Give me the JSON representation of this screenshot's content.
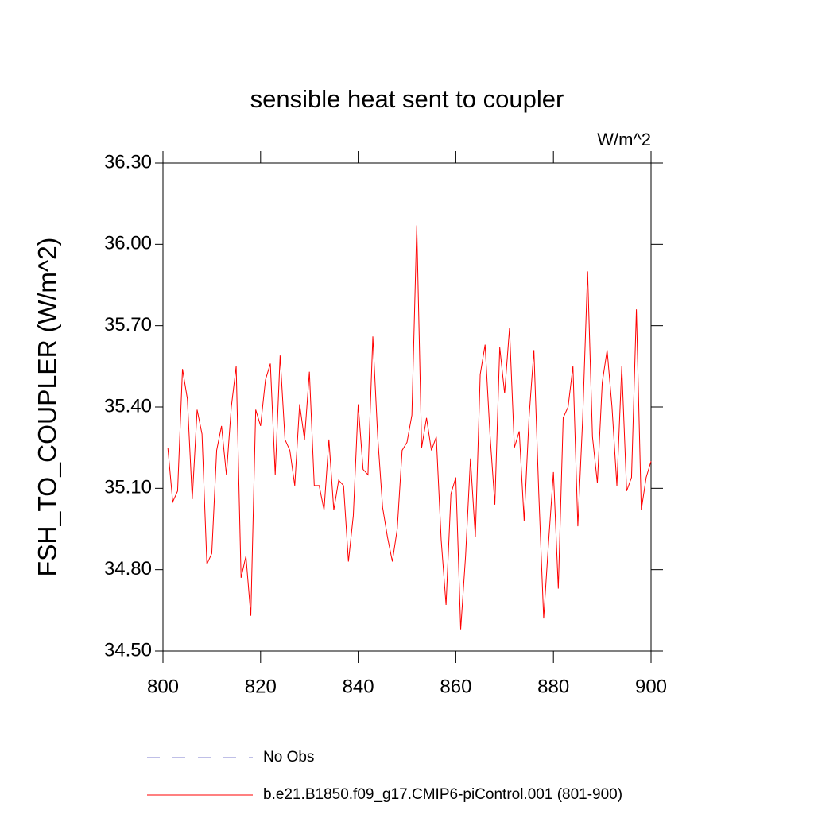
{
  "chart_data": {
    "type": "line",
    "title": "sensible heat sent to coupler",
    "units": "W/m^2",
    "ylabel": "FSH_TO_COUPLER  (W/m^2)",
    "x": [
      801,
      802,
      803,
      804,
      805,
      806,
      807,
      808,
      809,
      810,
      811,
      812,
      813,
      814,
      815,
      816,
      817,
      818,
      819,
      820,
      821,
      822,
      823,
      824,
      825,
      826,
      827,
      828,
      829,
      830,
      831,
      832,
      833,
      834,
      835,
      836,
      837,
      838,
      839,
      840,
      841,
      842,
      843,
      844,
      845,
      846,
      847,
      848,
      849,
      850,
      851,
      852,
      853,
      854,
      855,
      856,
      857,
      858,
      859,
      860,
      861,
      862,
      863,
      864,
      865,
      866,
      867,
      868,
      869,
      870,
      871,
      872,
      873,
      874,
      875,
      876,
      877,
      878,
      879,
      880,
      881,
      882,
      883,
      884,
      885,
      886,
      887,
      888,
      889,
      890,
      891,
      892,
      893,
      894,
      895,
      896,
      897,
      898,
      899,
      900
    ],
    "series": [
      {
        "name": "b.e21.B1850.f09_g17.CMIP6-piControl.001 (801-900)",
        "color": "#ff0000",
        "values": [
          35.25,
          35.05,
          35.09,
          35.54,
          35.43,
          35.06,
          35.39,
          35.3,
          34.82,
          34.86,
          35.24,
          35.33,
          35.15,
          35.4,
          35.55,
          34.77,
          34.85,
          34.63,
          35.39,
          35.33,
          35.5,
          35.56,
          35.15,
          35.59,
          35.28,
          35.24,
          35.11,
          35.41,
          35.28,
          35.53,
          35.11,
          35.11,
          35.02,
          35.28,
          35.02,
          35.13,
          35.11,
          34.83,
          35.0,
          35.41,
          35.17,
          35.15,
          35.66,
          35.29,
          35.03,
          34.92,
          34.83,
          34.95,
          35.24,
          35.27,
          35.37,
          36.07,
          35.25,
          35.36,
          35.24,
          35.29,
          34.91,
          34.67,
          35.08,
          35.14,
          34.58,
          34.85,
          35.21,
          34.92,
          35.52,
          35.63,
          35.3,
          35.04,
          35.62,
          35.45,
          35.69,
          35.25,
          35.31,
          34.98,
          35.36,
          35.61,
          35.08,
          34.62,
          34.9,
          35.16,
          34.73,
          35.36,
          35.4,
          35.55,
          34.96,
          35.36,
          35.9,
          35.29,
          35.12,
          35.49,
          35.61,
          35.4,
          35.11,
          35.55,
          35.09,
          35.14,
          35.76,
          35.02,
          35.14,
          35.2
        ]
      }
    ],
    "legend_extra": [
      {
        "name": "No Obs",
        "color": "#7f7fcf",
        "dash": true
      }
    ],
    "xlim": [
      800,
      900
    ],
    "xticks": [
      800,
      820,
      840,
      860,
      880,
      900
    ],
    "ylim": [
      34.5,
      36.3
    ],
    "yticks": [
      {
        "value": 34.5,
        "label": "34.50"
      },
      {
        "value": 34.8,
        "label": "34.80"
      },
      {
        "value": 35.1,
        "label": "35.10"
      },
      {
        "value": 35.4,
        "label": "35.40"
      },
      {
        "value": 35.7,
        "label": "35.70"
      },
      {
        "value": 36.0,
        "label": "36.00"
      },
      {
        "value": 36.3,
        "label": "36.30"
      }
    ]
  }
}
